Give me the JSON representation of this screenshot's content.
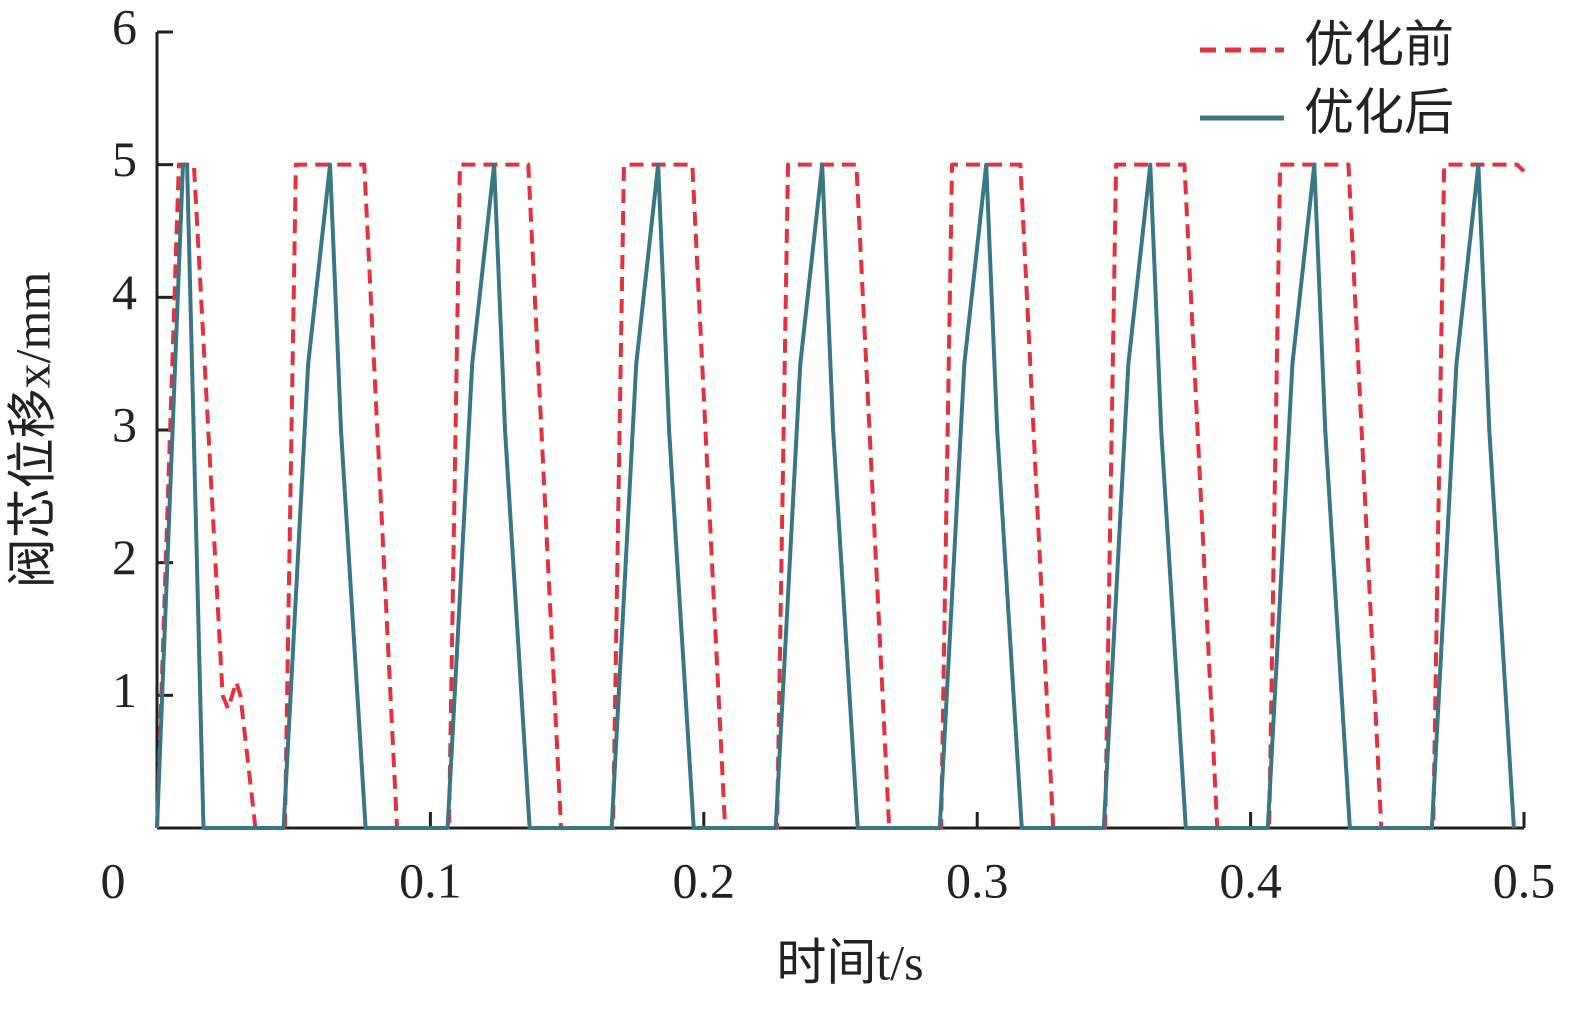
{
  "chart_data": {
    "type": "line",
    "xlabel": "时间t/s",
    "ylabel": "阀芯位移x/mm",
    "xlim": [
      0,
      0.5
    ],
    "ylim": [
      0,
      6
    ],
    "xticks": [
      0,
      0.1,
      0.2,
      0.3,
      0.4,
      0.5
    ],
    "yticks": [
      1,
      2,
      3,
      4,
      5,
      6
    ],
    "legend": "upper right",
    "series": [
      {
        "name": "优化前",
        "color": "#e3323c",
        "dash": true,
        "x": [
          0,
          0.008,
          0.0135,
          0.024,
          0.026,
          0.029,
          0.0305,
          0.036,
          0.0468,
          0.0508,
          0.0758,
          0.0878,
          0.1068,
          0.1108,
          0.1358,
          0.1478,
          0.1668,
          0.1708,
          0.1958,
          0.2078,
          0.2268,
          0.2308,
          0.2558,
          0.2678,
          0.2868,
          0.2908,
          0.3158,
          0.3278,
          0.3468,
          0.3508,
          0.3758,
          0.3878,
          0.4068,
          0.4108,
          0.4358,
          0.4478,
          0.4668,
          0.4708,
          0.4975,
          0.5
        ],
        "values": [
          0,
          5,
          5,
          1,
          0.9,
          1.1,
          1,
          0,
          0,
          5,
          5,
          0,
          0,
          5,
          5,
          0,
          0,
          5,
          5,
          0,
          0,
          5,
          5,
          0,
          0,
          5,
          5,
          0,
          0,
          5,
          5,
          0,
          0,
          5,
          5,
          0,
          0,
          5,
          5,
          4.95
        ]
      },
      {
        "name": "优化后",
        "color": "#3b7684",
        "dash": false,
        "x": [
          0,
          0.0095,
          0.011,
          0.017,
          0.0463,
          0.0553,
          0.0633,
          0.0673,
          0.0763,
          0.1063,
          0.1153,
          0.1233,
          0.1273,
          0.1363,
          0.1663,
          0.1753,
          0.1833,
          0.1873,
          0.1963,
          0.2263,
          0.2353,
          0.2433,
          0.2473,
          0.2563,
          0.2863,
          0.2953,
          0.3033,
          0.3073,
          0.3163,
          0.3463,
          0.3553,
          0.3633,
          0.3673,
          0.3763,
          0.4063,
          0.4153,
          0.4233,
          0.4273,
          0.4363,
          0.4663,
          0.4753,
          0.4833,
          0.4873,
          0.4963
        ],
        "values": [
          0,
          5,
          5,
          0,
          0,
          3.5,
          5,
          3,
          0,
          0,
          3.5,
          5,
          3,
          0,
          0,
          3.5,
          5,
          3,
          0,
          0,
          3.5,
          5,
          3,
          0,
          0,
          3.5,
          5,
          3,
          0,
          0,
          3.5,
          5,
          3,
          0,
          0,
          3.5,
          5,
          3,
          0,
          0,
          3.5,
          5,
          3,
          0
        ]
      }
    ]
  }
}
